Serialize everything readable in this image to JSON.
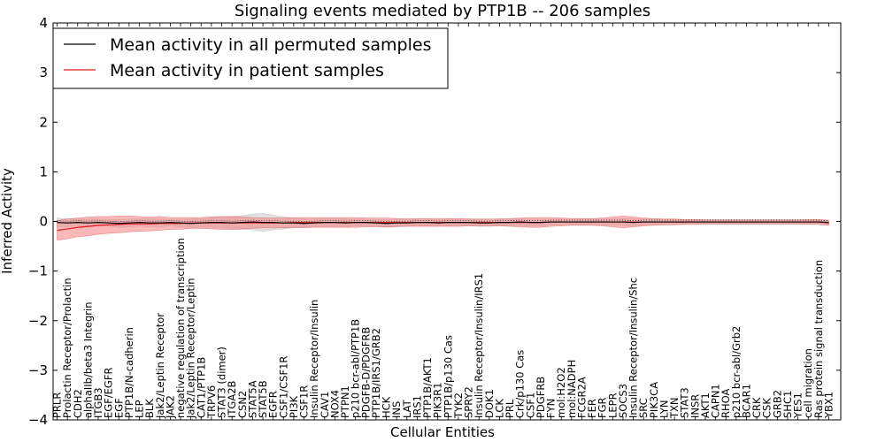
{
  "chart_data": {
    "type": "line",
    "title": "Signaling events mediated by PTP1B -- 206 samples",
    "xlabel": "Cellular Entities",
    "ylabel": "Inferred Activity",
    "ylim": [
      -4,
      4
    ],
    "yticks": [
      4,
      3,
      2,
      1,
      0,
      -1,
      -2,
      -3,
      -4
    ],
    "ytick_labels": [
      "4",
      "3",
      "2",
      "1",
      "0",
      "−1",
      "−2",
      "−3",
      "−4"
    ],
    "legend_position": "top-left",
    "colors": {
      "permuted": "#000000",
      "patient": "#e31a1c",
      "patient_band": "#f47f7f",
      "permuted_band": "#c8c8c8"
    },
    "categories": [
      "PRLR",
      "Prolactin Receptor/Prolactin",
      "CDH2",
      "alphaIIb/beta3 Integrin",
      "ITGB3",
      "EGF/EGFR",
      "EGF",
      "PTP1B/N-cadherin",
      "LEP",
      "BLK",
      "Jak2/Leptin Receptor",
      "JAK2",
      "negative regulation of transcription",
      "Jak2/Leptin Receptor/Leptin",
      "CAT1/PTP1B",
      "TRPV6",
      "STAT3 (dimer)",
      "ITGA2B",
      "CSN2",
      "STAT5A",
      "STAT5B",
      "EGFR",
      "CSF1/CSF1R",
      "PI3K",
      "CSF1R",
      "Insulin Receptor/Insulin",
      "CAV1",
      "NOX4",
      "PTPN1",
      "p210 bcr-abl/PTP1B",
      "PDGFB-D/PDGFRB",
      "PTP1B/IRS1/GRB2",
      "HCK",
      "INS",
      "LAT",
      "IRS1",
      "PTP1B/AKT1",
      "PIK3R1",
      "PTP1B/p130 Cas",
      "TYK2",
      "SPRY2",
      "Insulin Receptor/Insulin/IRS1",
      "DOK1",
      "LCK",
      "PRL",
      "Crk/p130 Cas",
      "CSF1",
      "PDGFRB",
      "FYN",
      "mol:H2O2",
      "mol:NADPH",
      "FCGR2A",
      "FER",
      "FGR",
      "LEPR",
      "SOCS3",
      "Insulin Receptor/Insulin/Shc",
      "SRC",
      "PIK3CA",
      "LYN",
      "TXN",
      "STAT3",
      "INSR",
      "AKT1",
      "CAPN1",
      "RHOA",
      "p210 bcr-abl/Grb2",
      "BCAR1",
      "CRK",
      "CSK",
      "GRB2",
      "SHC1",
      "YES1",
      "cell migration",
      "Ras protein signal transduction",
      "YBX1"
    ],
    "series": [
      {
        "name": "Mean activity in all permuted samples",
        "values": [
          -0.02,
          -0.03,
          -0.02,
          -0.03,
          -0.02,
          -0.03,
          -0.04,
          -0.03,
          -0.02,
          -0.03,
          -0.03,
          -0.02,
          -0.03,
          -0.04,
          -0.03,
          -0.02,
          -0.02,
          -0.03,
          -0.02,
          -0.01,
          -0.02,
          -0.02,
          -0.03,
          -0.03,
          -0.04,
          -0.03,
          -0.02,
          -0.02,
          -0.03,
          -0.02,
          -0.02,
          -0.03,
          -0.04,
          -0.03,
          -0.03,
          -0.02,
          -0.02,
          -0.03,
          -0.02,
          -0.02,
          -0.02,
          -0.03,
          -0.03,
          -0.02,
          -0.02,
          -0.01,
          -0.02,
          -0.02,
          -0.01,
          -0.01,
          -0.01,
          -0.01,
          -0.01,
          -0.01,
          -0.01,
          -0.01,
          -0.02,
          -0.01,
          -0.01,
          -0.01,
          -0.01,
          -0.01,
          -0.01,
          -0.01,
          -0.01,
          -0.01,
          -0.01,
          -0.01,
          -0.01,
          -0.01,
          -0.01,
          -0.01,
          -0.01,
          -0.01,
          -0.01,
          -0.02
        ],
        "band": [
          0.09,
          0.08,
          0.07,
          0.08,
          0.07,
          0.07,
          0.08,
          0.08,
          0.07,
          0.08,
          0.08,
          0.07,
          0.08,
          0.09,
          0.09,
          0.1,
          0.12,
          0.13,
          0.14,
          0.16,
          0.18,
          0.15,
          0.12,
          0.1,
          0.09,
          0.08,
          0.08,
          0.08,
          0.08,
          0.07,
          0.07,
          0.07,
          0.08,
          0.08,
          0.07,
          0.07,
          0.07,
          0.07,
          0.07,
          0.07,
          0.07,
          0.07,
          0.07,
          0.07,
          0.07,
          0.07,
          0.07,
          0.07,
          0.06,
          0.06,
          0.06,
          0.06,
          0.06,
          0.06,
          0.06,
          0.07,
          0.07,
          0.06,
          0.06,
          0.05,
          0.05,
          0.05,
          0.05,
          0.05,
          0.05,
          0.05,
          0.05,
          0.05,
          0.05,
          0.05,
          0.05,
          0.05,
          0.05,
          0.05,
          0.05,
          0.05
        ]
      },
      {
        "name": "Mean activity in patient samples",
        "values": [
          -0.18,
          -0.15,
          -0.12,
          -0.1,
          -0.08,
          -0.07,
          -0.06,
          -0.05,
          -0.05,
          -0.05,
          -0.04,
          -0.04,
          -0.04,
          -0.03,
          -0.03,
          -0.03,
          -0.03,
          -0.03,
          -0.03,
          -0.03,
          -0.03,
          -0.03,
          -0.03,
          -0.02,
          -0.02,
          -0.02,
          -0.02,
          -0.02,
          -0.02,
          -0.02,
          -0.02,
          -0.02,
          -0.02,
          -0.02,
          -0.02,
          -0.02,
          -0.02,
          -0.02,
          -0.02,
          -0.02,
          -0.02,
          -0.02,
          -0.02,
          -0.02,
          -0.02,
          -0.02,
          -0.02,
          -0.02,
          -0.01,
          -0.01,
          -0.01,
          -0.01,
          -0.01,
          -0.01,
          -0.01,
          -0.01,
          -0.01,
          -0.01,
          -0.01,
          -0.01,
          -0.01,
          -0.01,
          -0.01,
          -0.01,
          -0.01,
          -0.01,
          -0.01,
          -0.01,
          -0.01,
          -0.01,
          -0.01,
          -0.01,
          -0.01,
          -0.01,
          -0.01,
          -0.03
        ],
        "band": [
          0.2,
          0.2,
          0.19,
          0.19,
          0.18,
          0.17,
          0.17,
          0.16,
          0.15,
          0.14,
          0.14,
          0.12,
          0.12,
          0.11,
          0.11,
          0.12,
          0.13,
          0.13,
          0.12,
          0.11,
          0.1,
          0.1,
          0.1,
          0.1,
          0.1,
          0.1,
          0.1,
          0.1,
          0.1,
          0.1,
          0.09,
          0.09,
          0.09,
          0.08,
          0.08,
          0.08,
          0.08,
          0.08,
          0.08,
          0.08,
          0.07,
          0.07,
          0.07,
          0.07,
          0.08,
          0.09,
          0.1,
          0.1,
          0.09,
          0.08,
          0.07,
          0.07,
          0.07,
          0.08,
          0.1,
          0.12,
          0.1,
          0.08,
          0.07,
          0.06,
          0.06,
          0.05,
          0.05,
          0.04,
          0.04,
          0.04,
          0.04,
          0.04,
          0.04,
          0.04,
          0.04,
          0.04,
          0.04,
          0.05,
          0.05,
          0.05
        ]
      }
    ]
  }
}
